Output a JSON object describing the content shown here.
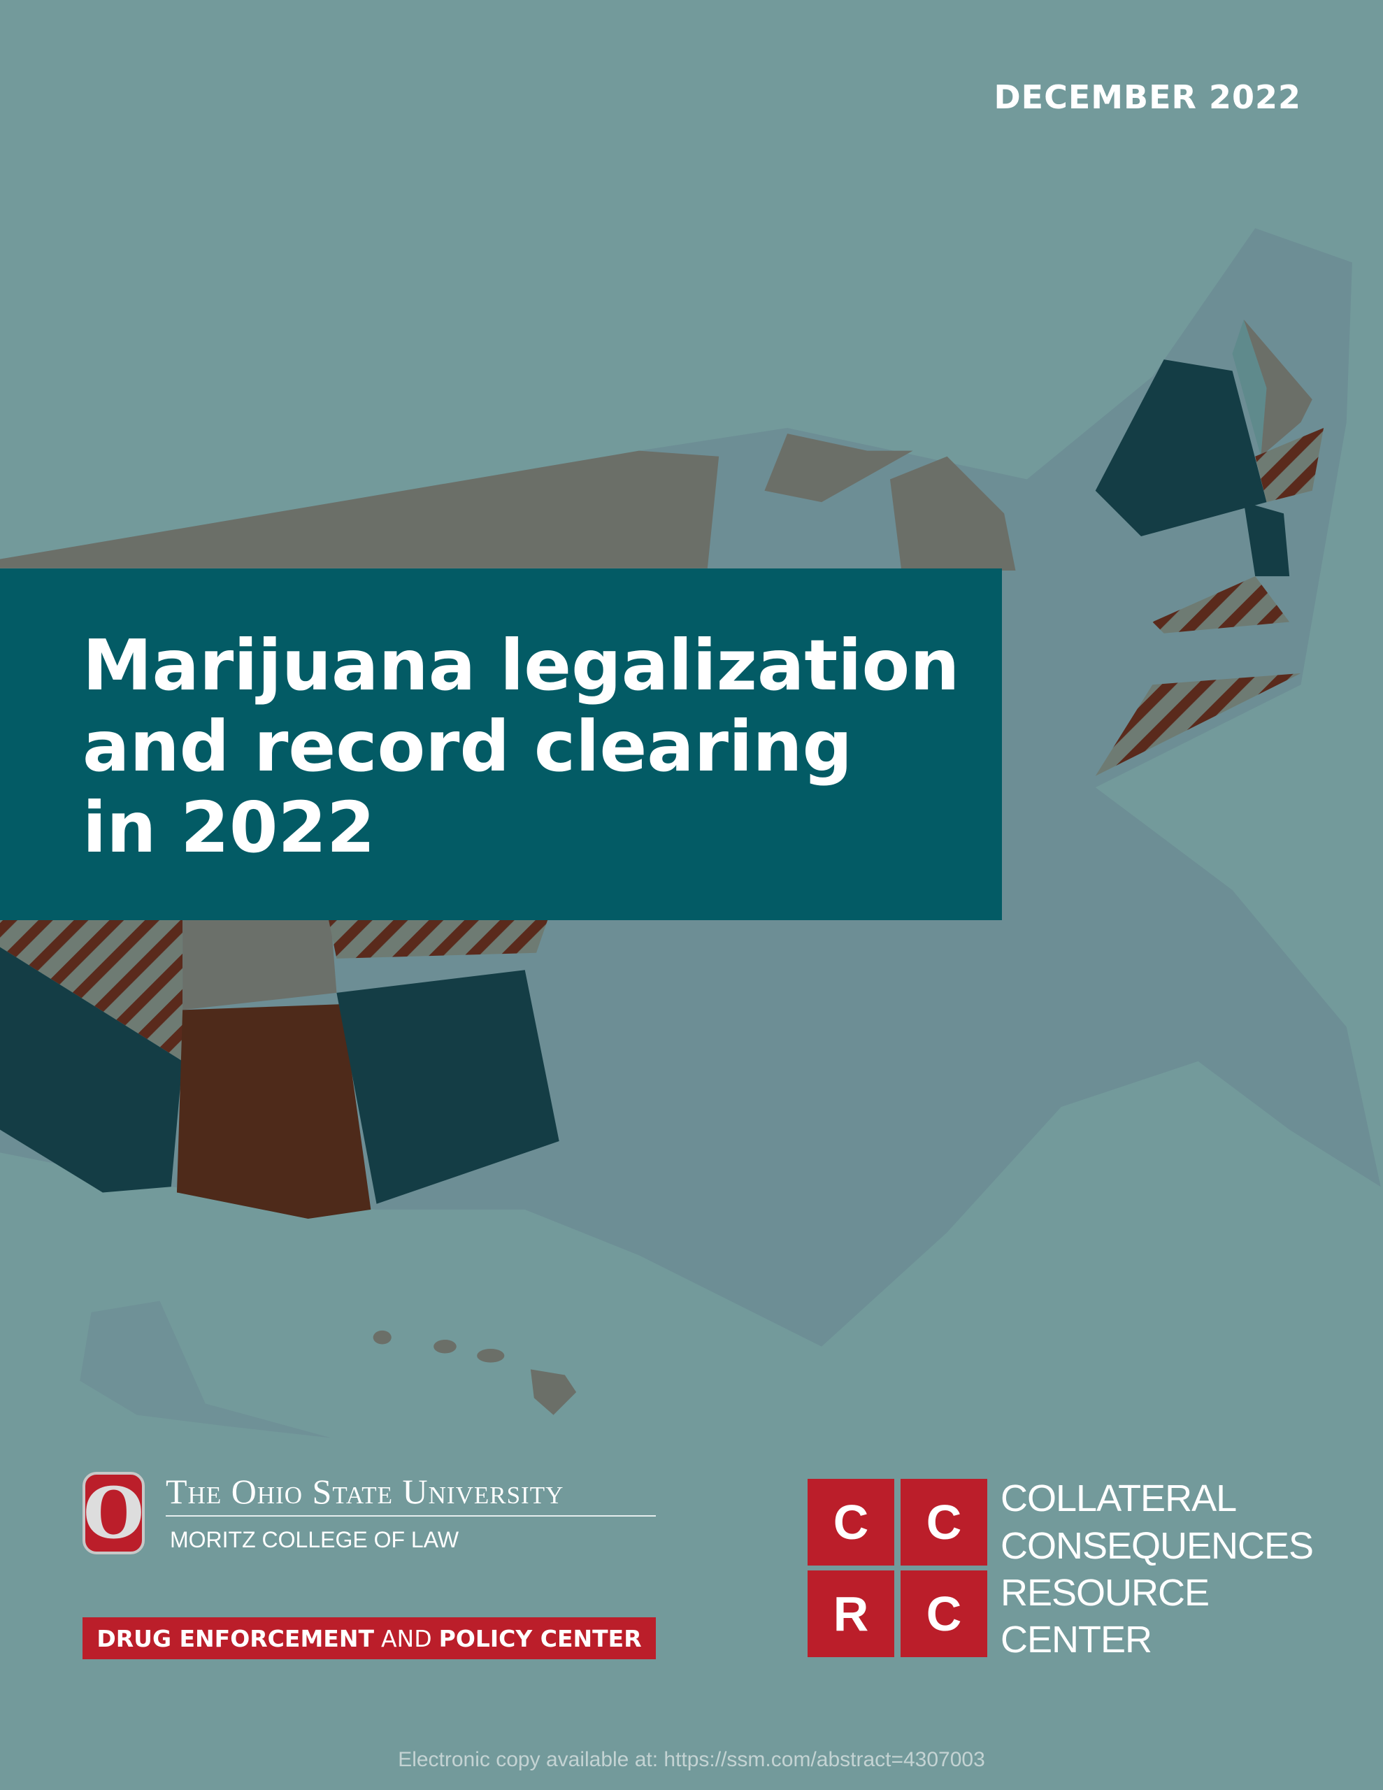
{
  "header": {
    "date": "DECEMBER 2022"
  },
  "title": {
    "lines": [
      "Marijuana legalization",
      "and record clearing",
      "in 2022"
    ]
  },
  "osu_logo": {
    "letter": "O",
    "name": "The Ohio State University",
    "college": "MORITZ COLLEGE OF LAW"
  },
  "center_banner": {
    "part1": "DRUG ENFORCEMENT",
    "part2": "AND",
    "part3": "POLICY CENTER"
  },
  "ccrc_logo": {
    "letters": [
      "C",
      "C",
      "R",
      "C"
    ],
    "name_lines": [
      "COLLATERAL",
      "CONSEQUENCES",
      "RESOURCE",
      "CENTER"
    ]
  },
  "footer": {
    "note": "Electronic copy available at: https://ssm.com/abstract=4307003"
  }
}
